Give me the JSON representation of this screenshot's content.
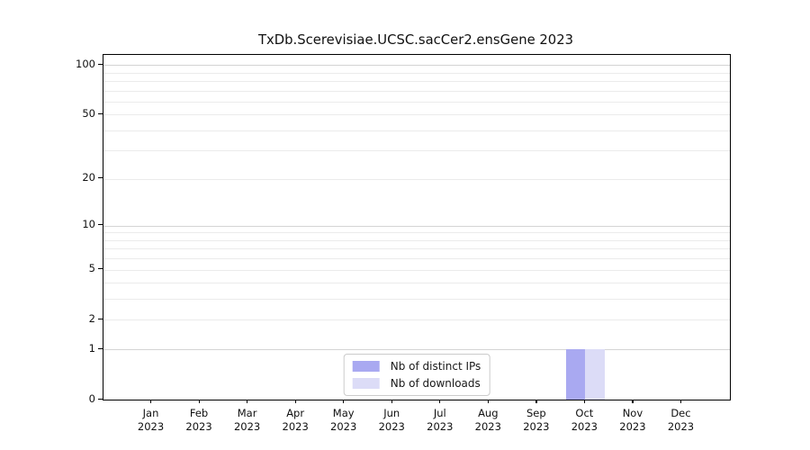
{
  "figure": {
    "background": "#ffffff"
  },
  "chart_data": {
    "type": "bar",
    "title": "TxDb.Scerevisiae.UCSC.sacCer2.ensGene 2023",
    "xlabel": "",
    "ylabel": "",
    "y_scale": "log1p",
    "ylim": [
      0,
      115
    ],
    "grid": "horizontal",
    "legend_position": "lower center",
    "categories": [
      {
        "month": "Jan",
        "year": "2023"
      },
      {
        "month": "Feb",
        "year": "2023"
      },
      {
        "month": "Mar",
        "year": "2023"
      },
      {
        "month": "Apr",
        "year": "2023"
      },
      {
        "month": "May",
        "year": "2023"
      },
      {
        "month": "Jun",
        "year": "2023"
      },
      {
        "month": "Jul",
        "year": "2023"
      },
      {
        "month": "Aug",
        "year": "2023"
      },
      {
        "month": "Sep",
        "year": "2023"
      },
      {
        "month": "Oct",
        "year": "2023"
      },
      {
        "month": "Nov",
        "year": "2023"
      },
      {
        "month": "Dec",
        "year": "2023"
      }
    ],
    "series": [
      {
        "name": "Nb of distinct IPs",
        "color": "#a9a9f1",
        "values": [
          0,
          0,
          0,
          0,
          0,
          0,
          0,
          0,
          0,
          1,
          0,
          0
        ]
      },
      {
        "name": "Nb of downloads",
        "color": "#dcdcf7",
        "values": [
          0,
          0,
          0,
          0,
          0,
          0,
          0,
          0,
          0,
          1,
          0,
          0
        ]
      }
    ],
    "y_ticks": [
      0,
      1,
      2,
      5,
      10,
      20,
      50,
      100
    ],
    "y_minor_gridlines": [
      3,
      4,
      6,
      7,
      8,
      9,
      30,
      40,
      60,
      70,
      80,
      90
    ],
    "y_emphasized_gridlines": [
      1,
      10,
      100
    ],
    "axis_color": "#000000",
    "text_color": "#1a1a1a",
    "gridline_color": "#ebebeb",
    "gridline_emphasis_color": "#d4d4d4"
  }
}
